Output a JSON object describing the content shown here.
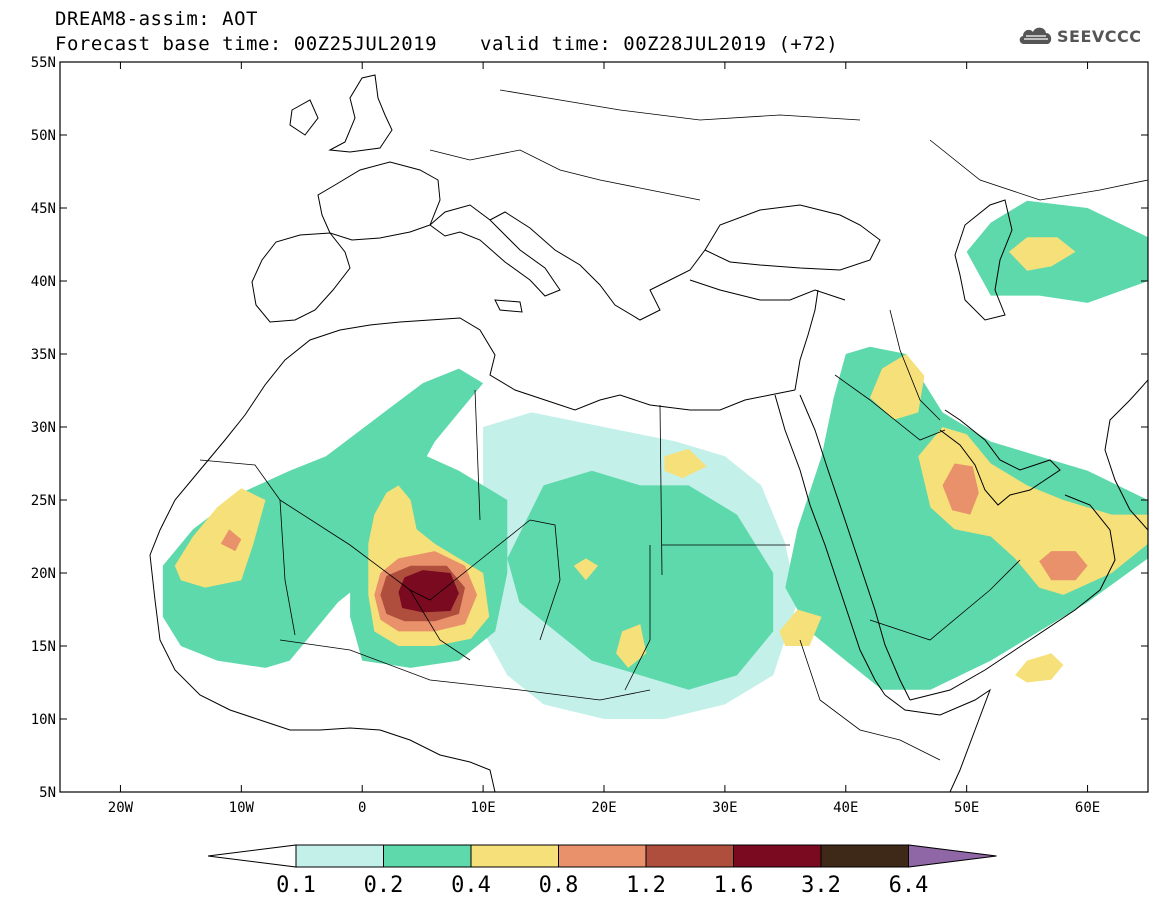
{
  "header": {
    "title_line1": "DREAM8-assim: AOT",
    "title_line2": "Forecast base time: 00Z25JUL2019",
    "valid_time": "valid time: 00Z28JUL2019 (+72)"
  },
  "logo": {
    "text": "SEEVCCC",
    "icon": "cloud-icon"
  },
  "map": {
    "lon_range": [
      -25,
      65
    ],
    "lat_range": [
      5,
      55
    ],
    "x_ticks": [
      {
        "lon": -20,
        "label": "20W"
      },
      {
        "lon": -10,
        "label": "10W"
      },
      {
        "lon": 0,
        "label": "0"
      },
      {
        "lon": 10,
        "label": "10E"
      },
      {
        "lon": 20,
        "label": "20E"
      },
      {
        "lon": 30,
        "label": "30E"
      },
      {
        "lon": 40,
        "label": "40E"
      },
      {
        "lon": 50,
        "label": "50E"
      },
      {
        "lon": 60,
        "label": "60E"
      }
    ],
    "y_ticks": [
      {
        "lat": 55,
        "label": "55N"
      },
      {
        "lat": 50,
        "label": "50N"
      },
      {
        "lat": 45,
        "label": "45N"
      },
      {
        "lat": 40,
        "label": "40N"
      },
      {
        "lat": 35,
        "label": "35N"
      },
      {
        "lat": 30,
        "label": "30N"
      },
      {
        "lat": 25,
        "label": "25N"
      },
      {
        "lat": 20,
        "label": "20N"
      },
      {
        "lat": 15,
        "label": "15N"
      },
      {
        "lat": 10,
        "label": "10N"
      },
      {
        "lat": 5,
        "label": "5N"
      }
    ]
  },
  "colorbar": {
    "levels": [
      "0.1",
      "0.2",
      "0.4",
      "0.8",
      "1.2",
      "1.6",
      "3.2",
      "6.4"
    ],
    "colors": [
      "#ffffff",
      "#c4f0ea",
      "#5dd9ab",
      "#f6e07a",
      "#e8916a",
      "#b04e3e",
      "#7a0a20",
      "#3e2818",
      "#8f67a6"
    ]
  },
  "aot_regions": [
    {
      "name": "west-sahara-plume",
      "level": 0.2,
      "points": [
        [
          -16.5,
          20.5
        ],
        [
          -14,
          23
        ],
        [
          -10,
          25.5
        ],
        [
          -6,
          27
        ],
        [
          -3,
          28
        ],
        [
          1,
          30.5
        ],
        [
          5,
          33
        ],
        [
          8,
          34
        ],
        [
          10,
          33
        ],
        [
          8,
          31
        ],
        [
          6,
          29
        ],
        [
          4,
          26
        ],
        [
          4,
          23
        ],
        [
          1,
          20
        ],
        [
          -2,
          18
        ],
        [
          -4,
          16
        ],
        [
          -6,
          14
        ],
        [
          -8,
          13.5
        ],
        [
          -12,
          14
        ],
        [
          -15,
          15
        ],
        [
          -16.5,
          17
        ]
      ]
    },
    {
      "name": "west-sahara-core",
      "level": 0.4,
      "points": [
        [
          -15.5,
          20.5
        ],
        [
          -14,
          22.5
        ],
        [
          -12,
          24.5
        ],
        [
          -10,
          25.8
        ],
        [
          -8,
          25
        ],
        [
          -9,
          22
        ],
        [
          -10,
          19.5
        ],
        [
          -13,
          19
        ],
        [
          -15,
          19.5
        ]
      ]
    },
    {
      "name": "mauritania-core",
      "level": 0.8,
      "points": [
        [
          -11,
          23
        ],
        [
          -10,
          22.3
        ],
        [
          -10.5,
          21.5
        ],
        [
          -11.7,
          22
        ]
      ]
    },
    {
      "name": "niger-plume",
      "level": 0.2,
      "points": [
        [
          0,
          24
        ],
        [
          1,
          26
        ],
        [
          2,
          27.5
        ],
        [
          4,
          28.5
        ],
        [
          8,
          27
        ],
        [
          12,
          25
        ],
        [
          12,
          20
        ],
        [
          11,
          16
        ],
        [
          8,
          14
        ],
        [
          4,
          13.5
        ],
        [
          0,
          14
        ],
        [
          -1,
          17
        ],
        [
          -1,
          20
        ]
      ]
    },
    {
      "name": "niger-core",
      "level": 0.4,
      "points": [
        [
          0.5,
          22
        ],
        [
          1,
          24
        ],
        [
          2,
          25.5
        ],
        [
          3,
          26
        ],
        [
          4,
          25
        ],
        [
          4.5,
          23
        ],
        [
          6,
          22
        ],
        [
          8,
          21
        ],
        [
          10,
          20
        ],
        [
          10.5,
          17
        ],
        [
          9,
          15.5
        ],
        [
          6,
          15
        ],
        [
          3,
          15
        ],
        [
          1,
          16
        ],
        [
          0.5,
          18.5
        ]
      ]
    },
    {
      "name": "niger-hot",
      "level": 0.8,
      "points": [
        [
          1,
          18.5
        ],
        [
          1.5,
          20
        ],
        [
          3,
          21
        ],
        [
          6,
          21.5
        ],
        [
          8.5,
          20.5
        ],
        [
          9.5,
          18.5
        ],
        [
          8.5,
          16.5
        ],
        [
          6,
          16
        ],
        [
          3,
          16
        ],
        [
          1.5,
          16.8
        ]
      ]
    },
    {
      "name": "niger-peak",
      "level": 1.2,
      "points": [
        [
          1.5,
          18.5
        ],
        [
          2,
          19.8
        ],
        [
          4,
          20.5
        ],
        [
          7,
          20.5
        ],
        [
          8.5,
          19
        ],
        [
          8,
          17.2
        ],
        [
          6,
          16.7
        ],
        [
          3.5,
          16.7
        ],
        [
          2,
          17.2
        ]
      ]
    },
    {
      "name": "niger-max",
      "level": 1.6,
      "points": [
        [
          3,
          18.7
        ],
        [
          3.5,
          19.7
        ],
        [
          5,
          20.2
        ],
        [
          7.3,
          20
        ],
        [
          8,
          18.6
        ],
        [
          7.3,
          17.4
        ],
        [
          5,
          17.3
        ],
        [
          3.3,
          17.6
        ]
      ]
    },
    {
      "name": "central-sahara",
      "level": 0.1,
      "points": [
        [
          10,
          30
        ],
        [
          14,
          31
        ],
        [
          20,
          30
        ],
        [
          26,
          29
        ],
        [
          30,
          28
        ],
        [
          33,
          26
        ],
        [
          35,
          22
        ],
        [
          36,
          18
        ],
        [
          34,
          13
        ],
        [
          30,
          11
        ],
        [
          25,
          10
        ],
        [
          20,
          10
        ],
        [
          15,
          11
        ],
        [
          12,
          13
        ],
        [
          10,
          16
        ],
        [
          10,
          22
        ]
      ]
    },
    {
      "name": "central-sahara-mid",
      "level": 0.2,
      "points": [
        [
          15,
          26
        ],
        [
          19,
          27
        ],
        [
          23,
          26
        ],
        [
          27,
          26
        ],
        [
          31,
          24
        ],
        [
          34,
          20
        ],
        [
          34,
          16
        ],
        [
          31,
          13
        ],
        [
          27,
          12
        ],
        [
          23,
          13
        ],
        [
          19,
          14
        ],
        [
          16,
          16
        ],
        [
          13,
          18
        ],
        [
          12,
          21
        ]
      ]
    },
    {
      "name": "chad-core",
      "level": 0.4,
      "points": [
        [
          17.5,
          20.5
        ],
        [
          18.5,
          21
        ],
        [
          19.5,
          20.5
        ],
        [
          18.5,
          19.5
        ]
      ]
    },
    {
      "name": "chad-south",
      "level": 0.4,
      "points": [
        [
          21.5,
          16
        ],
        [
          23,
          16.5
        ],
        [
          23.5,
          14.5
        ],
        [
          22,
          13.5
        ],
        [
          21,
          14.5
        ]
      ]
    },
    {
      "name": "libya-patch",
      "level": 0.4,
      "points": [
        [
          25,
          28
        ],
        [
          27,
          28.5
        ],
        [
          28.5,
          27.3
        ],
        [
          26.5,
          26.5
        ],
        [
          25,
          27
        ]
      ]
    },
    {
      "name": "arabia-plume",
      "level": 0.2,
      "points": [
        [
          40,
          35
        ],
        [
          42,
          35.5
        ],
        [
          45,
          35
        ],
        [
          48,
          31
        ],
        [
          52,
          29
        ],
        [
          56,
          28
        ],
        [
          60,
          27
        ],
        [
          65,
          25
        ],
        [
          65,
          21
        ],
        [
          60,
          18
        ],
        [
          56,
          16
        ],
        [
          52,
          14
        ],
        [
          47,
          12
        ],
        [
          43,
          12
        ],
        [
          40,
          14
        ],
        [
          37,
          16
        ],
        [
          35,
          19
        ],
        [
          36,
          23
        ],
        [
          38,
          28
        ],
        [
          39,
          32
        ]
      ]
    },
    {
      "name": "arabia-core",
      "level": 0.4,
      "points": [
        [
          46,
          28
        ],
        [
          48,
          30
        ],
        [
          50,
          29.5
        ],
        [
          52,
          27.5
        ],
        [
          55,
          26
        ],
        [
          58,
          25
        ],
        [
          62,
          24
        ],
        [
          65,
          24
        ],
        [
          65,
          22
        ],
        [
          62,
          20
        ],
        [
          58,
          18.5
        ],
        [
          56,
          19
        ],
        [
          54,
          21
        ],
        [
          52,
          22.5
        ],
        [
          49,
          23
        ],
        [
          47,
          24.5
        ]
      ]
    },
    {
      "name": "iraq-core",
      "level": 0.4,
      "points": [
        [
          42,
          32
        ],
        [
          43,
          34
        ],
        [
          45,
          35
        ],
        [
          46.5,
          33.5
        ],
        [
          46,
          31
        ],
        [
          44,
          30.5
        ]
      ]
    },
    {
      "name": "arabia-hot",
      "level": 0.8,
      "points": [
        [
          48,
          26
        ],
        [
          49,
          27.5
        ],
        [
          50.5,
          27.3
        ],
        [
          51,
          25.5
        ],
        [
          50.3,
          24
        ],
        [
          48.8,
          24.3
        ]
      ]
    },
    {
      "name": "oman-hot",
      "level": 0.8,
      "points": [
        [
          56,
          20.8
        ],
        [
          57,
          21.5
        ],
        [
          59,
          21.5
        ],
        [
          60,
          20.5
        ],
        [
          59,
          19.5
        ],
        [
          57,
          19.5
        ]
      ]
    },
    {
      "name": "arabian-sea",
      "level": 0.4,
      "points": [
        [
          54,
          13
        ],
        [
          55,
          14
        ],
        [
          57,
          14.5
        ],
        [
          58,
          13.7
        ],
        [
          57,
          12.7
        ],
        [
          55,
          12.5
        ]
      ]
    },
    {
      "name": "caspian-core",
      "level": 0.4,
      "points": [
        [
          53.5,
          42
        ],
        [
          55,
          43
        ],
        [
          57.5,
          43
        ],
        [
          59,
          42
        ],
        [
          57,
          41
        ],
        [
          55,
          40.7
        ]
      ]
    },
    {
      "name": "caspian-outer",
      "level": 0.2,
      "points": [
        [
          50,
          42
        ],
        [
          52,
          44
        ],
        [
          55,
          45.5
        ],
        [
          60,
          45
        ],
        [
          65,
          43
        ],
        [
          65,
          40
        ],
        [
          60,
          38.5
        ],
        [
          56,
          39
        ],
        [
          52,
          39
        ]
      ]
    },
    {
      "name": "red-sea-patch",
      "level": 0.4,
      "points": [
        [
          34.5,
          16
        ],
        [
          36,
          17.5
        ],
        [
          38,
          17
        ],
        [
          37,
          15
        ],
        [
          35,
          15
        ]
      ]
    }
  ]
}
